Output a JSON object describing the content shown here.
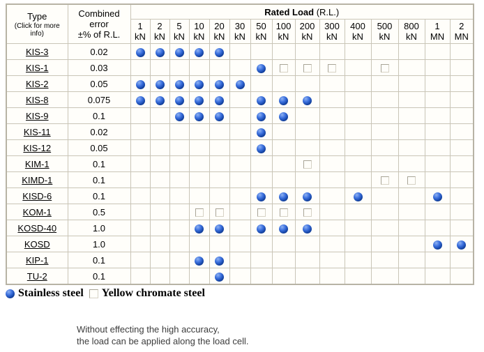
{
  "table": {
    "header": {
      "type_label": "Type",
      "type_sub": "(Click for more info)",
      "error_lines": [
        "Combined",
        "error",
        "±% of R.L."
      ],
      "rated_load_bold": "Rated Load",
      "rated_load_paren": "(R.L.)"
    },
    "columns": [
      {
        "num": "1",
        "unit": "kN"
      },
      {
        "num": "2",
        "unit": "kN"
      },
      {
        "num": "5",
        "unit": "kN"
      },
      {
        "num": "10",
        "unit": "kN"
      },
      {
        "num": "20",
        "unit": "kN"
      },
      {
        "num": "30",
        "unit": "kN"
      },
      {
        "num": "50",
        "unit": "kN"
      },
      {
        "num": "100",
        "unit": "kN"
      },
      {
        "num": "200",
        "unit": "kN"
      },
      {
        "num": "300",
        "unit": "kN"
      },
      {
        "num": "400",
        "unit": "kN"
      },
      {
        "num": "500",
        "unit": "kN"
      },
      {
        "num": "800",
        "unit": "kN"
      },
      {
        "num": "1",
        "unit": "MN"
      },
      {
        "num": "2",
        "unit": "MN"
      }
    ],
    "marker_legend": {
      "ball": "Stainless steel",
      "square": "Yellow chromate steel"
    },
    "rows": [
      {
        "type": "KIS-3",
        "error": "0.02",
        "cells": [
          "ball",
          "ball",
          "ball",
          "ball",
          "ball",
          "",
          "",
          "",
          "",
          "",
          "",
          "",
          "",
          "",
          ""
        ]
      },
      {
        "type": "KIS-1",
        "error": "0.03",
        "cells": [
          "",
          "",
          "",
          "",
          "",
          "",
          "ball",
          "square",
          "square",
          "square",
          "",
          "square",
          "",
          "",
          ""
        ]
      },
      {
        "type": "KIS-2",
        "error": "0.05",
        "cells": [
          "ball",
          "ball",
          "ball",
          "ball",
          "ball",
          "ball",
          "",
          "",
          "",
          "",
          "",
          "",
          "",
          "",
          ""
        ]
      },
      {
        "type": "KIS-8",
        "error": "0.075",
        "cells": [
          "ball",
          "ball",
          "ball",
          "ball",
          "ball",
          "",
          "ball",
          "ball",
          "ball",
          "",
          "",
          "",
          "",
          "",
          ""
        ]
      },
      {
        "type": "KIS-9",
        "error": "0.1",
        "cells": [
          "",
          "",
          "ball",
          "ball",
          "ball",
          "",
          "ball",
          "ball",
          "",
          "",
          "",
          "",
          "",
          "",
          ""
        ]
      },
      {
        "type": "KIS-11",
        "error": "0.02",
        "cells": [
          "",
          "",
          "",
          "",
          "",
          "",
          "ball",
          "",
          "",
          "",
          "",
          "",
          "",
          "",
          ""
        ]
      },
      {
        "type": "KIS-12",
        "error": "0.05",
        "cells": [
          "",
          "",
          "",
          "",
          "",
          "",
          "ball",
          "",
          "",
          "",
          "",
          "",
          "",
          "",
          ""
        ]
      },
      {
        "type": "KIM-1",
        "error": "0.1",
        "cells": [
          "",
          "",
          "",
          "",
          "",
          "",
          "",
          "",
          "square",
          "",
          "",
          "",
          "",
          "",
          ""
        ]
      },
      {
        "type": "KIMD-1",
        "error": "0.1",
        "cells": [
          "",
          "",
          "",
          "",
          "",
          "",
          "",
          "",
          "",
          "",
          "",
          "square",
          "square",
          "",
          ""
        ]
      },
      {
        "type": "KISD-6",
        "error": "0.1",
        "cells": [
          "",
          "",
          "",
          "",
          "",
          "",
          "ball",
          "ball",
          "ball",
          "",
          "ball",
          "",
          "",
          "ball",
          ""
        ]
      },
      {
        "type": "KOM-1",
        "error": "0.5",
        "cells": [
          "",
          "",
          "",
          "square",
          "square",
          "",
          "square",
          "square",
          "square",
          "",
          "",
          "",
          "",
          "",
          ""
        ]
      },
      {
        "type": "KOSD-40",
        "error": "1.0",
        "cells": [
          "",
          "",
          "",
          "ball",
          "ball",
          "",
          "ball",
          "ball",
          "ball",
          "",
          "",
          "",
          "",
          "",
          ""
        ]
      },
      {
        "type": "KOSD",
        "error": "1.0",
        "cells": [
          "",
          "",
          "",
          "",
          "",
          "",
          "",
          "",
          "",
          "",
          "",
          "",
          "",
          "ball",
          "ball"
        ]
      },
      {
        "type": "KIP-1",
        "error": "0.1",
        "cells": [
          "",
          "",
          "",
          "ball",
          "ball",
          "",
          "",
          "",
          "",
          "",
          "",
          "",
          "",
          "",
          ""
        ]
      },
      {
        "type": "TU-2",
        "error": "0.1",
        "cells": [
          "",
          "",
          "",
          "",
          "ball",
          "",
          "",
          "",
          "",
          "",
          "",
          "",
          "",
          "",
          ""
        ]
      }
    ]
  },
  "legend": {
    "stainless": "Stainless steel",
    "yellow": "Yellow chromate steel"
  },
  "note_lines": [
    "Without effecting the high accuracy,",
    "the load can be applied along the load cell."
  ],
  "colors": {
    "ball_highlight": "#8fb2f2",
    "ball_mid": "#3a6fdd",
    "ball_dark": "#092a72",
    "table_border": "#c9c5b7",
    "note_text": "#3c3c3c"
  }
}
